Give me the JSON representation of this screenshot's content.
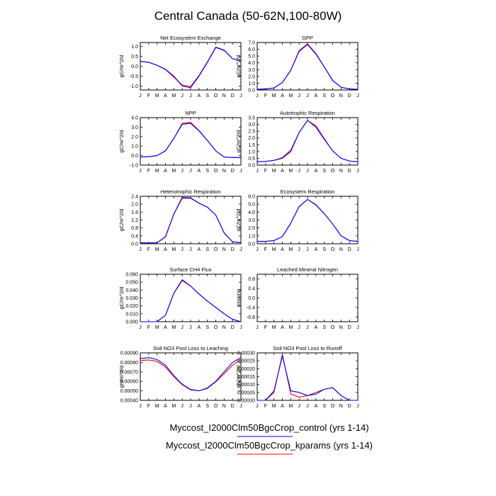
{
  "title": "Central Canada (50-62N,100-80W)",
  "legend": {
    "placement": "bottom-center",
    "entries": [
      {
        "label": "Myccost_I2000Clm50BgcCrop_control (yrs 1-14)",
        "color": "#0000ff"
      },
      {
        "label": "Myccost_I2000Clm50BgcCrop_kparams (yrs 1-14)",
        "color": "#ff0000"
      }
    ]
  },
  "chart_data": [
    {
      "type": "line",
      "title": "Net Ecosystem Exchange",
      "ylabel": "gC/m^2/d",
      "categories": [
        "J",
        "F",
        "M",
        "A",
        "M",
        "J",
        "J",
        "A",
        "S",
        "O",
        "N",
        "D",
        "J"
      ],
      "ylim": [
        -1.2,
        1.2
      ],
      "yticks": [
        "1.0",
        "0.5",
        "0.0",
        "-0.5",
        "-1.0"
      ],
      "yticks_values": [
        1.0,
        0.5,
        0.0,
        -0.5,
        -1.0
      ],
      "series": [
        {
          "color": "#0000ff",
          "values": [
            0.25,
            0.2,
            0.05,
            -0.15,
            -0.5,
            -1.0,
            -1.08,
            -0.5,
            0.2,
            0.95,
            0.8,
            0.38,
            0.28
          ]
        },
        {
          "color": "#ff0000",
          "values": [
            0.25,
            0.2,
            0.05,
            -0.17,
            -0.55,
            -0.95,
            -1.03,
            -0.47,
            0.22,
            0.97,
            0.82,
            0.38,
            0.28
          ]
        }
      ]
    },
    {
      "type": "line",
      "title": "GPP",
      "ylabel": "gC/m^2/d",
      "categories": [
        "J",
        "F",
        "M",
        "A",
        "M",
        "J",
        "J",
        "A",
        "S",
        "O",
        "N",
        "D",
        "J"
      ],
      "ylim": [
        0,
        7
      ],
      "yticks": [
        "0.0",
        "1.0",
        "2.0",
        "3.0",
        "4.0",
        "5.0",
        "6.0",
        "7.0"
      ],
      "yticks_values": [
        0,
        1,
        2,
        3,
        4,
        5,
        6,
        7
      ],
      "series": [
        {
          "color": "#0000ff",
          "values": [
            0.1,
            0.15,
            0.3,
            1.1,
            2.9,
            5.7,
            6.7,
            5.3,
            3.4,
            1.4,
            0.4,
            0.15,
            0.1
          ]
        },
        {
          "color": "#ff0000",
          "values": [
            0.1,
            0.15,
            0.3,
            1.1,
            2.9,
            5.8,
            6.8,
            5.4,
            3.4,
            1.4,
            0.4,
            0.15,
            0.1
          ]
        }
      ]
    },
    {
      "type": "line",
      "title": "NPP",
      "ylabel": "gC/m^2/d",
      "categories": [
        "J",
        "F",
        "M",
        "A",
        "M",
        "J",
        "J",
        "A",
        "S",
        "O",
        "N",
        "D",
        "J"
      ],
      "ylim": [
        -1,
        4
      ],
      "yticks": [
        "-1.0",
        "0.0",
        "1.0",
        "2.0",
        "3.0",
        "4.0"
      ],
      "yticks_values": [
        -1,
        0,
        1,
        2,
        3,
        4
      ],
      "series": [
        {
          "color": "#0000ff",
          "values": [
            -0.15,
            -0.12,
            0.0,
            0.5,
            1.8,
            3.3,
            3.4,
            2.6,
            1.6,
            0.5,
            -0.15,
            -0.2,
            -0.2
          ]
        },
        {
          "color": "#ff0000",
          "values": [
            -0.15,
            -0.12,
            0.0,
            0.5,
            1.8,
            3.4,
            3.5,
            2.65,
            1.6,
            0.5,
            -0.15,
            -0.2,
            -0.2
          ]
        }
      ]
    },
    {
      "type": "line",
      "title": "Autotrophic Respiration",
      "ylabel": "gC/m^2/d",
      "categories": [
        "J",
        "F",
        "M",
        "A",
        "M",
        "J",
        "J",
        "A",
        "S",
        "O",
        "N",
        "D",
        "J"
      ],
      "ylim": [
        0,
        3.5
      ],
      "yticks": [
        "0.0",
        "0.5",
        "1.0",
        "1.5",
        "2.0",
        "2.5",
        "3.0",
        "3.5"
      ],
      "yticks_values": [
        0,
        0.5,
        1,
        1.5,
        2,
        2.5,
        3,
        3.5
      ],
      "series": [
        {
          "color": "#0000ff",
          "values": [
            0.25,
            0.27,
            0.35,
            0.5,
            1.0,
            2.4,
            3.3,
            2.8,
            1.9,
            1.05,
            0.5,
            0.3,
            0.25
          ]
        },
        {
          "color": "#ff0000",
          "values": [
            0.25,
            0.27,
            0.35,
            0.55,
            1.1,
            2.4,
            3.3,
            2.9,
            1.95,
            1.05,
            0.5,
            0.3,
            0.25
          ]
        }
      ]
    },
    {
      "type": "line",
      "title": "Heterotrophic Respiration",
      "ylabel": "gC/m^2/d",
      "categories": [
        "J",
        "F",
        "M",
        "A",
        "M",
        "J",
        "J",
        "A",
        "S",
        "O",
        "N",
        "D",
        "J"
      ],
      "ylim": [
        0,
        2.4
      ],
      "yticks": [
        "0.0",
        "0.4",
        "0.8",
        "1.2",
        "1.6",
        "2.0",
        "2.4"
      ],
      "yticks_values": [
        0,
        0.4,
        0.8,
        1.2,
        1.6,
        2.0,
        2.4
      ],
      "series": [
        {
          "color": "#0000ff",
          "values": [
            0.05,
            0.04,
            0.05,
            0.35,
            1.5,
            2.35,
            2.32,
            2.05,
            1.85,
            1.45,
            0.55,
            0.1,
            0.05
          ]
        },
        {
          "color": "#ff0000",
          "values": [
            0.05,
            0.04,
            0.05,
            0.35,
            1.5,
            2.3,
            2.3,
            2.05,
            1.85,
            1.45,
            0.55,
            0.1,
            0.05
          ]
        }
      ]
    },
    {
      "type": "line",
      "title": "Ecosystem Respiration",
      "ylabel": "gC/m^2/d",
      "categories": [
        "J",
        "F",
        "M",
        "A",
        "M",
        "J",
        "J",
        "A",
        "S",
        "O",
        "N",
        "D",
        "J"
      ],
      "ylim": [
        0,
        6
      ],
      "yticks": [
        "0.0",
        "1.0",
        "2.0",
        "3.0",
        "4.0",
        "5.0",
        "6.0"
      ],
      "yticks_values": [
        0,
        1,
        2,
        3,
        4,
        5,
        6
      ],
      "series": [
        {
          "color": "#0000ff",
          "values": [
            0.3,
            0.3,
            0.4,
            0.9,
            2.6,
            4.7,
            5.6,
            4.9,
            3.8,
            2.5,
            1.0,
            0.4,
            0.3
          ]
        },
        {
          "color": "#ff0000",
          "values": [
            0.3,
            0.3,
            0.4,
            0.9,
            2.6,
            4.7,
            5.6,
            4.95,
            3.8,
            2.5,
            1.0,
            0.4,
            0.3
          ]
        }
      ]
    },
    {
      "type": "line",
      "title": "Surface CH4 Flux",
      "ylabel": "gC/m^2/d",
      "categories": [
        "J",
        "F",
        "M",
        "A",
        "M",
        "J",
        "J",
        "A",
        "S",
        "O",
        "N",
        "D",
        "J"
      ],
      "ylim": [
        0,
        0.06
      ],
      "yticks": [
        "0.000",
        "0.010",
        "0.020",
        "0.030",
        "0.040",
        "0.050",
        "0.060"
      ],
      "yticks_values": [
        0,
        0.01,
        0.02,
        0.03,
        0.04,
        0.05,
        0.06
      ],
      "series": [
        {
          "color": "#0000ff",
          "values": [
            0.0,
            0.0,
            0.0,
            0.008,
            0.036,
            0.053,
            0.045,
            0.035,
            0.026,
            0.018,
            0.01,
            0.003,
            0.0
          ]
        },
        {
          "color": "#ff0000",
          "values": [
            0.0,
            0.0,
            0.0,
            0.008,
            0.036,
            0.052,
            0.045,
            0.035,
            0.026,
            0.018,
            0.01,
            0.003,
            0.0
          ]
        }
      ]
    },
    {
      "type": "line",
      "title": "Leached Mineral Nitrogen",
      "ylabel": "missing",
      "categories": [
        "J",
        "F",
        "M",
        "A",
        "M",
        "J",
        "J",
        "A",
        "S",
        "O",
        "N",
        "D",
        "J"
      ],
      "ylim": [
        -1,
        1
      ],
      "yticks": [
        "0.8",
        "0.4",
        "0.0",
        "-0.4",
        "-0.8"
      ],
      "yticks_values": [
        0.8,
        0.4,
        0,
        -0.4,
        -0.8
      ],
      "series": []
    },
    {
      "type": "line",
      "title": "Soil NO3 Pool Loss to Leaching",
      "ylabel": "gN/m^2/d",
      "categories": [
        "J",
        "F",
        "M",
        "A",
        "M",
        "J",
        "J",
        "A",
        "S",
        "O",
        "N",
        "D",
        "J"
      ],
      "ylim": [
        0.0004,
        0.0009
      ],
      "yticks": [
        "0.00040",
        "0.00050",
        "0.00060",
        "0.00070",
        "0.00080",
        "0.00090"
      ],
      "yticks_values": [
        0.0004,
        0.0005,
        0.0006,
        0.0007,
        0.0008,
        0.0009
      ],
      "series": [
        {
          "color": "#0000ff",
          "values": [
            0.00084,
            0.00085,
            0.00083,
            0.00077,
            0.00066,
            0.00057,
            0.000515,
            0.0005,
            0.00053,
            0.0006,
            0.0007,
            0.0008,
            0.00085
          ]
        },
        {
          "color": "#ff0000",
          "values": [
            0.00082,
            0.000825,
            0.00081,
            0.00075,
            0.00065,
            0.000565,
            0.00051,
            0.0005,
            0.000525,
            0.000595,
            0.00068,
            0.00077,
            0.00083
          ]
        }
      ]
    },
    {
      "type": "line",
      "title": "Soil NO3 Pool Loss to Runoff",
      "ylabel": "gN/m^2/d",
      "categories": [
        "J",
        "F",
        "M",
        "A",
        "M",
        "J",
        "J",
        "A",
        "S",
        "O",
        "N",
        "D",
        "J"
      ],
      "ylim": [
        0,
        0.0003
      ],
      "yticks": [
        "0.00000",
        "0.00005",
        "0.00010",
        "0.00015",
        "0.00020",
        "0.00025",
        "0.00030"
      ],
      "yticks_values": [
        0,
        5e-05,
        0.0001,
        0.00015,
        0.0002,
        0.00025,
        0.0003
      ],
      "series": [
        {
          "color": "#0000ff",
          "values": [
            0.0,
            0.0,
            6e-05,
            0.00028,
            6e-05,
            5e-05,
            3e-05,
            4e-05,
            7e-05,
            8e-05,
            3e-05,
            0.0,
            0.0
          ]
        },
        {
          "color": "#ff0000",
          "values": [
            0.0,
            0.0,
            5e-05,
            0.00029,
            4e-05,
            2e-05,
            3e-05,
            5e-05,
            7e-05,
            8e-05,
            3e-05,
            0.0,
            0.0
          ]
        }
      ]
    }
  ]
}
